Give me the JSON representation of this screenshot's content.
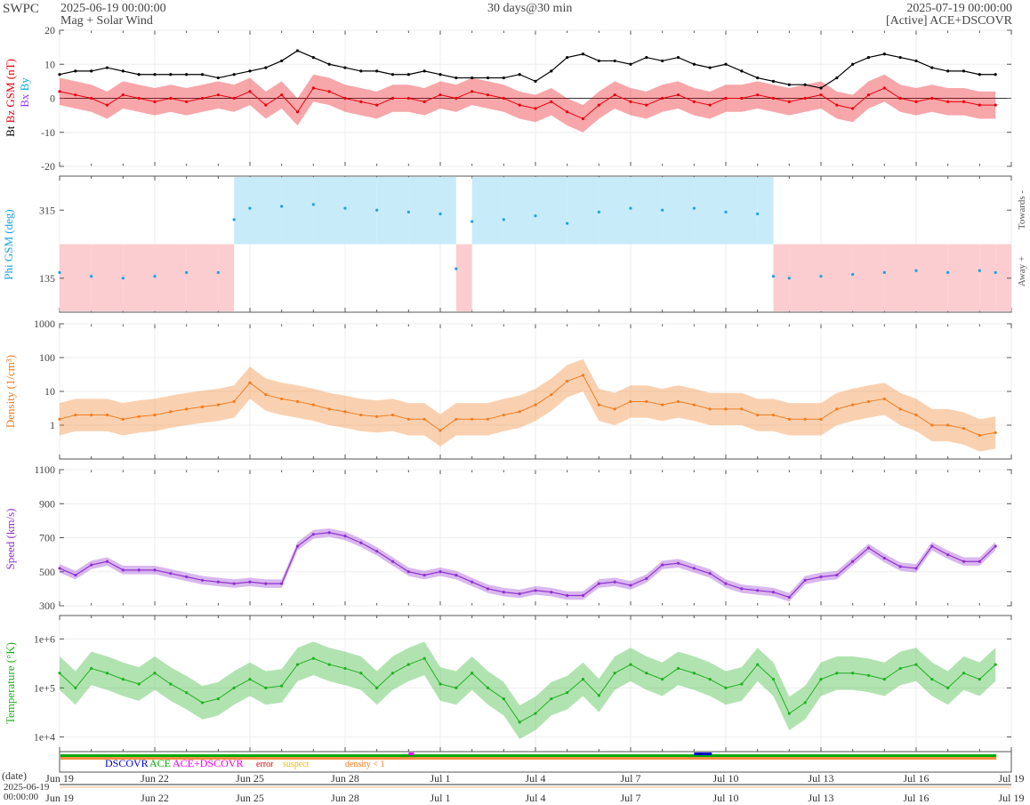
{
  "header": {
    "brand": "SWPC",
    "start_time": "2025-06-19 00:00:00",
    "subtitle": "Mag + Solar Wind",
    "span": "30 days@30 min",
    "end_time": "2025-07-19 00:00:00",
    "source": "[Active] ACE+DSCOVR"
  },
  "colors": {
    "bt": "#000000",
    "bz": "#e8000b",
    "bx": "#9b30ff",
    "by": "#00aadd",
    "phi": "#1aa3e0",
    "phi_towards_fill": "#c8ebfa",
    "phi_away_fill": "#fbcdd0",
    "density": "#f07c1e",
    "speed": "#9130d0",
    "temperature": "#1fb01f",
    "dscovr": "#0000cc",
    "ace": "#00aa00",
    "ace_dscovr": "#ee00ee",
    "error": "#dd0000",
    "suspect": "#e8b800",
    "density_lt_1": "#f07c1e"
  },
  "chart_data": [
    {
      "type": "line",
      "title": "Mag",
      "ylabel_parts": [
        "Bt",
        "Bz GSM (nT)",
        "Bx",
        "By"
      ],
      "ylim": [
        -20,
        20
      ],
      "yticks": [
        "20",
        "10",
        "0",
        "-10",
        "-20"
      ],
      "x_domain_days": [
        0,
        30
      ],
      "series": [
        {
          "name": "Bt",
          "x": [
            0,
            0.5,
            1,
            1.5,
            2,
            2.5,
            3,
            3.5,
            4,
            4.5,
            5,
            5.5,
            6,
            6.5,
            7,
            7.5,
            8,
            8.5,
            9,
            9.5,
            10,
            10.5,
            11,
            11.5,
            12,
            12.5,
            13,
            13.5,
            14,
            14.5,
            15,
            15.5,
            16,
            16.5,
            17,
            17.5,
            18,
            18.5,
            19,
            19.5,
            20,
            20.5,
            21,
            21.5,
            22,
            22.5,
            23,
            23.5,
            24,
            24.5,
            25,
            25.5,
            26,
            26.5,
            27,
            27.5,
            28,
            28.5,
            29,
            29.5
          ],
          "values": [
            7,
            8,
            8,
            9,
            8,
            7,
            7,
            7,
            7,
            7,
            6,
            7,
            8,
            9,
            11,
            14,
            12,
            10,
            9,
            8,
            8,
            7,
            7,
            8,
            7,
            6,
            6,
            6,
            6,
            7,
            5,
            8,
            12,
            13,
            11,
            11,
            10,
            12,
            11,
            12,
            10,
            9,
            10,
            8,
            6,
            5,
            4,
            4,
            3,
            6,
            10,
            12,
            13,
            12,
            11,
            9,
            8,
            8,
            7,
            7
          ]
        },
        {
          "name": "Bz",
          "x": [
            0,
            0.5,
            1,
            1.5,
            2,
            2.5,
            3,
            3.5,
            4,
            4.5,
            5,
            5.5,
            6,
            6.5,
            7,
            7.5,
            8,
            8.5,
            9,
            9.5,
            10,
            10.5,
            11,
            11.5,
            12,
            12.5,
            13,
            13.5,
            14,
            14.5,
            15,
            15.5,
            16,
            16.5,
            17,
            17.5,
            18,
            18.5,
            19,
            19.5,
            20,
            20.5,
            21,
            21.5,
            22,
            22.5,
            23,
            23.5,
            24,
            24.5,
            25,
            25.5,
            26,
            26.5,
            27,
            27.5,
            28,
            28.5,
            29,
            29.5
          ],
          "values": [
            2,
            1,
            0,
            -2,
            1,
            0,
            -1,
            0,
            -1,
            0,
            1,
            0,
            2,
            -2,
            1,
            -4,
            3,
            2,
            0,
            -1,
            -2,
            0,
            0,
            -1,
            1,
            0,
            2,
            1,
            0,
            -2,
            -3,
            -1,
            -4,
            -6,
            -2,
            1,
            -1,
            -2,
            0,
            1,
            -1,
            -2,
            0,
            0,
            1,
            0,
            -1,
            0,
            1,
            -2,
            -3,
            1,
            3,
            0,
            -1,
            0,
            -1,
            -1,
            -2,
            -2
          ]
        }
      ]
    },
    {
      "type": "scatter",
      "title": "Phi",
      "ylabel": "Phi GSM (deg)",
      "ylim": [
        45,
        405
      ],
      "yticks": [
        "315",
        "135"
      ],
      "right_labels": [
        "Towards -",
        "Away +"
      ],
      "series": [
        {
          "name": "Phi",
          "x": [
            0,
            1,
            2,
            3,
            4,
            5,
            5.5,
            6,
            7,
            8,
            9,
            10,
            11,
            12,
            12.5,
            13,
            14,
            15,
            16,
            17,
            18,
            19,
            20,
            21,
            22,
            22.5,
            23,
            24,
            25,
            26,
            27,
            28,
            29,
            29.5
          ],
          "values": [
            150,
            140,
            135,
            140,
            150,
            150,
            290,
            320,
            325,
            330,
            320,
            315,
            310,
            305,
            160,
            285,
            290,
            300,
            280,
            310,
            320,
            315,
            320,
            310,
            305,
            140,
            135,
            140,
            145,
            150,
            155,
            150,
            155,
            150
          ]
        }
      ]
    },
    {
      "type": "line",
      "title": "Density",
      "ylabel": "Density (1/cm³)",
      "yscale": "log",
      "ylim": [
        0.1,
        1000
      ],
      "yticks": [
        "1000",
        "100",
        "10",
        "1"
      ],
      "series": [
        {
          "name": "Density",
          "x": [
            0,
            0.5,
            1,
            1.5,
            2,
            2.5,
            3,
            3.5,
            4,
            4.5,
            5,
            5.5,
            6,
            6.5,
            7,
            7.5,
            8,
            8.5,
            9,
            9.5,
            10,
            10.5,
            11,
            11.5,
            12,
            12.5,
            13,
            13.5,
            14,
            14.5,
            15,
            15.5,
            16,
            16.5,
            17,
            17.5,
            18,
            18.5,
            19,
            19.5,
            20,
            20.5,
            21,
            21.5,
            22,
            22.5,
            23,
            23.5,
            24,
            24.5,
            25,
            25.5,
            26,
            26.5,
            27,
            27.5,
            28,
            28.5,
            29,
            29.5
          ],
          "values": [
            1.5,
            2,
            2,
            2,
            1.5,
            1.8,
            2,
            2.5,
            3,
            3.5,
            4,
            5,
            18,
            8,
            6,
            5,
            4,
            3,
            2.5,
            2,
            1.8,
            2,
            1.5,
            1.5,
            0.7,
            1.5,
            1.5,
            1.5,
            2,
            2.5,
            4,
            8,
            20,
            30,
            4,
            3,
            5,
            5,
            4,
            5,
            4,
            3,
            3,
            3,
            2,
            2,
            1.5,
            1.5,
            1.5,
            3,
            4,
            5,
            6,
            3,
            2,
            1,
            1,
            0.8,
            0.5,
            0.6
          ]
        }
      ]
    },
    {
      "type": "line",
      "title": "Speed",
      "ylabel": "Speed (km/s)",
      "ylim": [
        300,
        1100
      ],
      "yticks": [
        "1100",
        "900",
        "700",
        "500",
        "300"
      ],
      "series": [
        {
          "name": "Speed",
          "x": [
            0,
            0.5,
            1,
            1.5,
            2,
            2.5,
            3,
            3.5,
            4,
            4.5,
            5,
            5.5,
            6,
            6.5,
            7,
            7.5,
            8,
            8.5,
            9,
            9.5,
            10,
            10.5,
            11,
            11.5,
            12,
            12.5,
            13,
            13.5,
            14,
            14.5,
            15,
            15.5,
            16,
            16.5,
            17,
            17.5,
            18,
            18.5,
            19,
            19.5,
            20,
            20.5,
            21,
            21.5,
            22,
            22.5,
            23,
            23.5,
            24,
            24.5,
            25,
            25.5,
            26,
            26.5,
            27,
            27.5,
            28,
            28.5,
            29,
            29.5
          ],
          "values": [
            520,
            480,
            540,
            560,
            510,
            510,
            510,
            490,
            470,
            450,
            440,
            430,
            440,
            430,
            430,
            650,
            720,
            730,
            710,
            670,
            620,
            560,
            500,
            480,
            500,
            480,
            440,
            400,
            380,
            370,
            390,
            380,
            360,
            360,
            430,
            440,
            420,
            460,
            540,
            550,
            520,
            490,
            430,
            400,
            390,
            380,
            350,
            450,
            470,
            480,
            560,
            640,
            580,
            530,
            520,
            650,
            600,
            560,
            560,
            650
          ]
        }
      ]
    },
    {
      "type": "line",
      "title": "Temperature",
      "ylabel": "Temperature (°K)",
      "yscale": "log",
      "ylim": [
        5000,
        3000000
      ],
      "yticks": [
        "1e+6",
        "1e+5",
        "1e+4"
      ],
      "series": [
        {
          "name": "Temperature",
          "x": [
            0,
            0.5,
            1,
            1.5,
            2,
            2.5,
            3,
            3.5,
            4,
            4.5,
            5,
            5.5,
            6,
            6.5,
            7,
            7.5,
            8,
            8.5,
            9,
            9.5,
            10,
            10.5,
            11,
            11.5,
            12,
            12.5,
            13,
            13.5,
            14,
            14.5,
            15,
            15.5,
            16,
            16.5,
            17,
            17.5,
            18,
            18.5,
            19,
            19.5,
            20,
            20.5,
            21,
            21.5,
            22,
            22.5,
            23,
            23.5,
            24,
            24.5,
            25,
            25.5,
            26,
            26.5,
            27,
            27.5,
            28,
            28.5,
            29,
            29.5
          ],
          "values": [
            200000,
            100000,
            250000,
            200000,
            150000,
            120000,
            200000,
            120000,
            80000,
            50000,
            60000,
            100000,
            150000,
            100000,
            110000,
            300000,
            400000,
            300000,
            250000,
            200000,
            100000,
            200000,
            300000,
            400000,
            120000,
            100000,
            200000,
            100000,
            60000,
            20000,
            30000,
            60000,
            80000,
            150000,
            70000,
            200000,
            300000,
            200000,
            150000,
            250000,
            200000,
            150000,
            100000,
            120000,
            300000,
            150000,
            30000,
            50000,
            150000,
            200000,
            200000,
            180000,
            150000,
            250000,
            300000,
            150000,
            100000,
            200000,
            150000,
            300000
          ]
        }
      ]
    }
  ],
  "source_bar": {
    "legend": [
      "DSCOVR",
      "ACE",
      "ACE+DSCOVR",
      "error",
      "suspect",
      "density < 1"
    ]
  },
  "x_axis": {
    "tick_labels": [
      "Jun 19",
      "Jun 22",
      "Jun 25",
      "Jun 28",
      "Jul 1",
      "Jul 4",
      "Jul 7",
      "Jul 10",
      "Jul 13",
      "Jul 16",
      "Jul 19"
    ],
    "date_label": "(date)",
    "start_date": "2025-06-19",
    "start_clock": "00:00:00"
  }
}
